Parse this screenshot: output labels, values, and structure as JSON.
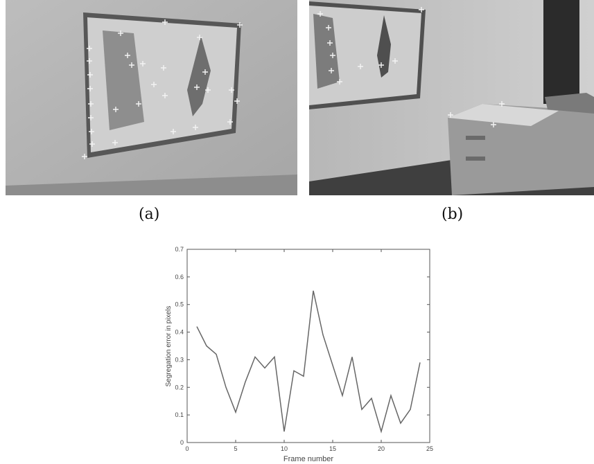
{
  "figure": {
    "caption_a": "(a)",
    "caption_b": "(b)"
  },
  "colors": {
    "wall": "#b9b9b9",
    "board_frame": "#5a5a5a",
    "board_surface": "#d2d2d2",
    "line": "#666666"
  },
  "chart_data": {
    "type": "line",
    "xlabel": "Frame number",
    "ylabel": "Segregation error in pixels",
    "xlim": [
      0,
      25
    ],
    "ylim": [
      0,
      0.7
    ],
    "x_ticks": [
      0,
      5,
      10,
      15,
      20,
      25
    ],
    "y_ticks": [
      0,
      0.1,
      0.2,
      0.3,
      0.4,
      0.5,
      0.6,
      0.7
    ],
    "x_tick_labels": [
      "0",
      "5",
      "10",
      "15",
      "20",
      "25"
    ],
    "y_tick_labels": [
      "0",
      "0.1",
      "0.2",
      "0.3",
      "0.4",
      "0.5",
      "0.6",
      "0.7"
    ],
    "grid": false,
    "series": [
      {
        "x": [
          1,
          2,
          3,
          4,
          5,
          6,
          7,
          8,
          9,
          10,
          11,
          12,
          13,
          14,
          15,
          16,
          17,
          18,
          19,
          20,
          21,
          22,
          23,
          24
        ],
        "values": [
          0.42,
          0.35,
          0.32,
          0.2,
          0.11,
          0.22,
          0.31,
          0.27,
          0.31,
          0.04,
          0.26,
          0.24,
          0.55,
          0.39,
          0.28,
          0.17,
          0.31,
          0.12,
          0.16,
          0.04,
          0.17,
          0.07,
          0.12,
          0.29
        ]
      }
    ]
  }
}
